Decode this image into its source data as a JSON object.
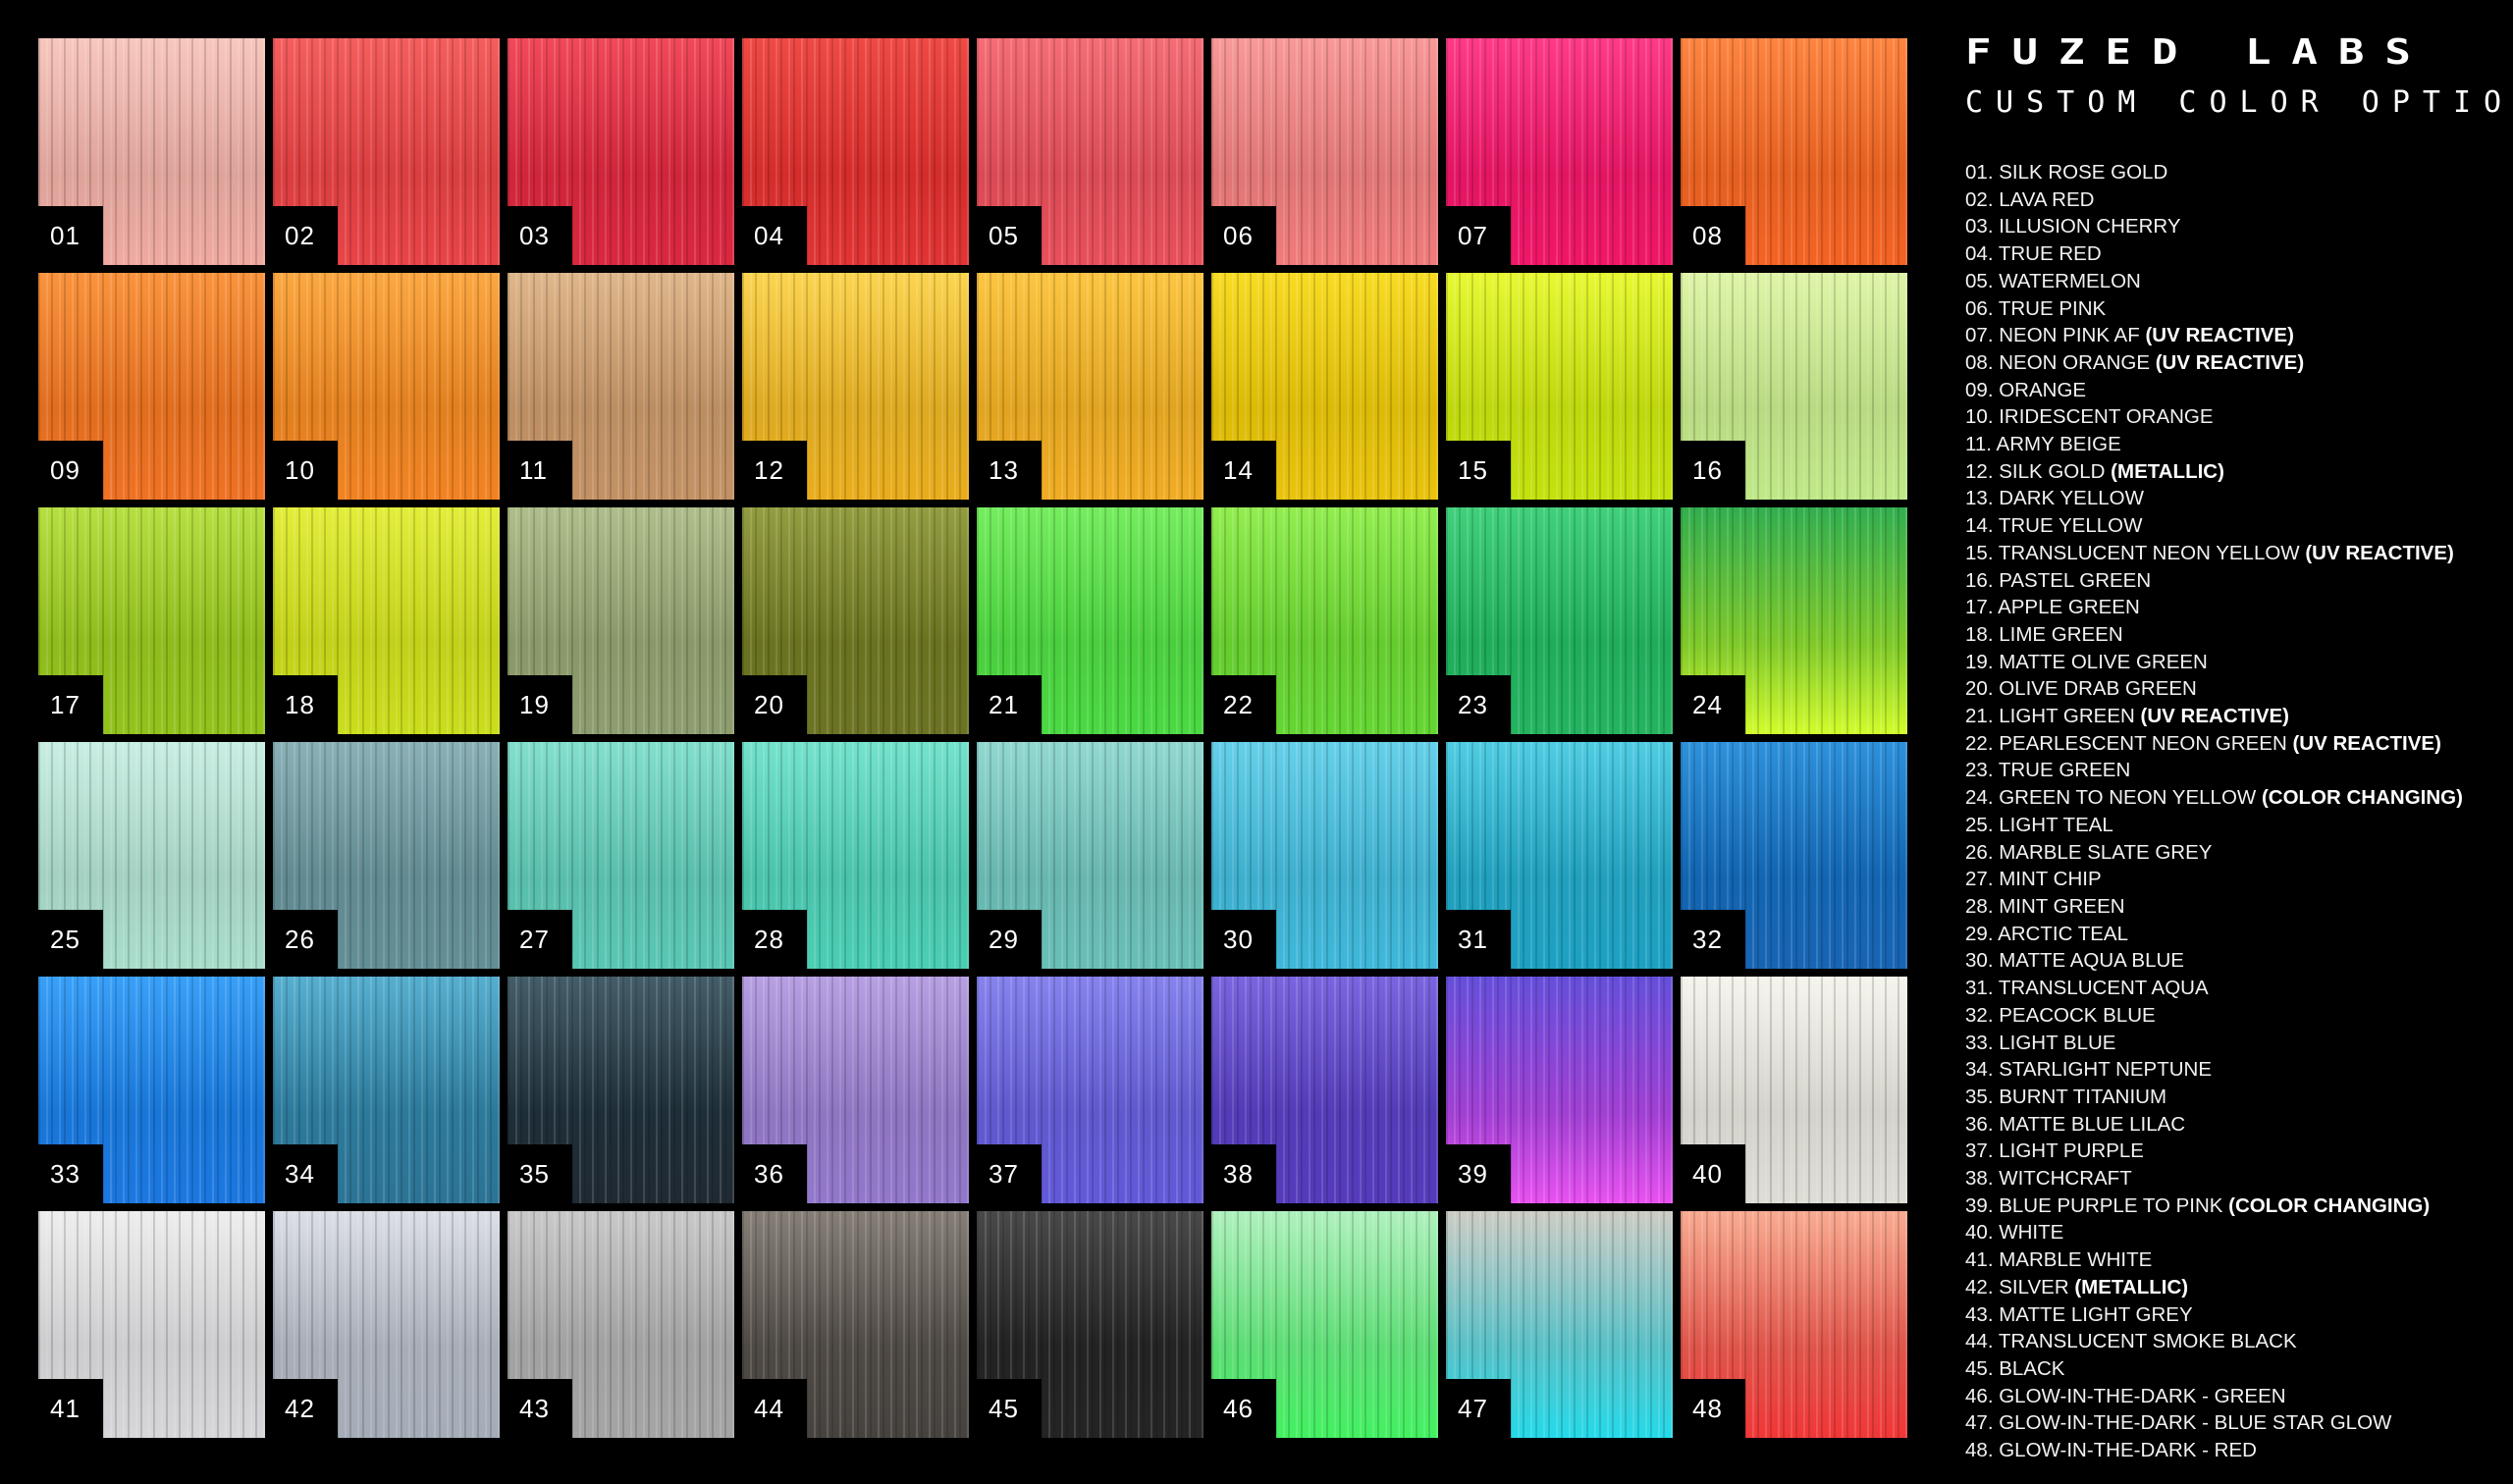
{
  "brand": {
    "logo_text": "FUZED LABS",
    "subtitle": "CUSTOM COLOR OPTIONS"
  },
  "swatches": [
    {
      "number": "01",
      "name": "SILK ROSE GOLD",
      "tag": "",
      "colors": [
        "#f6c2b8",
        "#eea59c"
      ]
    },
    {
      "number": "02",
      "name": "LAVA RED",
      "tag": "",
      "colors": [
        "#f45050",
        "#e83a3e"
      ]
    },
    {
      "number": "03",
      "name": "ILLUSION CHERRY",
      "tag": "",
      "colors": [
        "#f03a4c",
        "#d81c36"
      ]
    },
    {
      "number": "04",
      "name": "TRUE RED",
      "tag": "",
      "colors": [
        "#ee3a34",
        "#e02a2a"
      ]
    },
    {
      "number": "05",
      "name": "WATERMELON",
      "tag": "",
      "colors": [
        "#f4606a",
        "#e84652"
      ]
    },
    {
      "number": "06",
      "name": "TRUE PINK",
      "tag": "",
      "colors": [
        "#f89090",
        "#f07474"
      ]
    },
    {
      "number": "07",
      "name": "NEON PINK AF",
      "tag": "(UV REACTIVE)",
      "colors": [
        "#ff2a7c",
        "#f00a60"
      ]
    },
    {
      "number": "08",
      "name": "NEON ORANGE",
      "tag": "(UV REACTIVE)",
      "colors": [
        "#ff7a30",
        "#f45a18"
      ]
    },
    {
      "number": "09",
      "name": "ORANGE",
      "tag": "",
      "colors": [
        "#fa8a2c",
        "#f06a18"
      ]
    },
    {
      "number": "10",
      "name": "IRIDESCENT ORANGE",
      "tag": "",
      "colors": [
        "#fca030",
        "#f27c16"
      ]
    },
    {
      "number": "11",
      "name": "ARMY BEIGE",
      "tag": "",
      "colors": [
        "#dcb080",
        "#c08c5c"
      ]
    },
    {
      "number": "12",
      "name": "SILK GOLD",
      "tag": "(METALLIC)",
      "colors": [
        "#fcd040",
        "#e8a810"
      ]
    },
    {
      "number": "13",
      "name": "DARK YELLOW",
      "tag": "",
      "colors": [
        "#fcc030",
        "#f0a818"
      ]
    },
    {
      "number": "14",
      "name": "TRUE YELLOW",
      "tag": "",
      "colors": [
        "#f8d810",
        "#e8c000"
      ]
    },
    {
      "number": "15",
      "name": "TRANSLUCENT NEON YELLOW",
      "tag": "(UV REACTIVE)",
      "colors": [
        "#e4f820",
        "#c0e000"
      ]
    },
    {
      "number": "16",
      "name": "PASTEL GREEN",
      "tag": "",
      "colors": [
        "#dcf4a0",
        "#bce880"
      ]
    },
    {
      "number": "17",
      "name": "APPLE GREEN",
      "tag": "",
      "colors": [
        "#b0dc30",
        "#8cc010"
      ]
    },
    {
      "number": "18",
      "name": "LIME GREEN",
      "tag": "",
      "colors": [
        "#e0ec28",
        "#c8dc10"
      ]
    },
    {
      "number": "19",
      "name": "MATTE OLIVE GREEN",
      "tag": "",
      "colors": [
        "#a8b880",
        "#889868"
      ]
    },
    {
      "number": "20",
      "name": "OLIVE DRAB GREEN",
      "tag": "",
      "colors": [
        "#8a9430",
        "#646c18"
      ]
    },
    {
      "number": "21",
      "name": "LIGHT GREEN",
      "tag": "(UV REACTIVE)",
      "colors": [
        "#68ec50",
        "#40d838"
      ]
    },
    {
      "number": "22",
      "name": "PEARLESCENT NEON GREEN",
      "tag": "(UV REACTIVE)",
      "colors": [
        "#88ec40",
        "#5cd428"
      ]
    },
    {
      "number": "23",
      "name": "TRUE GREEN",
      "tag": "",
      "colors": [
        "#30cc70",
        "#18b058"
      ]
    },
    {
      "number": "24",
      "name": "GREEN TO NEON YELLOW",
      "tag": "(COLOR CHANGING)",
      "colors": [
        "#20a840",
        "#d0fc20"
      ]
    },
    {
      "number": "25",
      "name": "LIGHT TEAL",
      "tag": "",
      "colors": [
        "#c4ece0",
        "#a4dcc8"
      ]
    },
    {
      "number": "26",
      "name": "MARBLE SLATE GREY",
      "tag": "",
      "colors": [
        "#80aab0",
        "#5a8890"
      ]
    },
    {
      "number": "27",
      "name": "MINT CHIP",
      "tag": "",
      "colors": [
        "#78dcc8",
        "#50c4b0"
      ]
    },
    {
      "number": "28",
      "name": "MINT GREEN",
      "tag": "",
      "colors": [
        "#68e0c8",
        "#40ccb0"
      ]
    },
    {
      "number": "29",
      "name": "ARCTIC TEAL",
      "tag": "",
      "colors": [
        "#88d4cc",
        "#60bcb4"
      ]
    },
    {
      "number": "30",
      "name": "MATTE AQUA BLUE",
      "tag": "",
      "colors": [
        "#58cce8",
        "#34b4d8"
      ]
    },
    {
      "number": "31",
      "name": "TRANSLUCENT AQUA",
      "tag": "",
      "colors": [
        "#40c8e0",
        "#109cc0"
      ]
    },
    {
      "number": "32",
      "name": "PEACOCK BLUE",
      "tag": "",
      "colors": [
        "#1c88d8",
        "#0c5cb0"
      ]
    },
    {
      "number": "33",
      "name": "LIGHT BLUE",
      "tag": "",
      "colors": [
        "#2898f8",
        "#1070e0"
      ]
    },
    {
      "number": "34",
      "name": "STARLIGHT NEPTUNE",
      "tag": "",
      "colors": [
        "#48a8cc",
        "#206c90"
      ]
    },
    {
      "number": "35",
      "name": "BURNT TITANIUM",
      "tag": "",
      "colors": [
        "#34505c",
        "#141e28"
      ]
    },
    {
      "number": "36",
      "name": "MATTE BLUE LILAC",
      "tag": "",
      "colors": [
        "#b098e0",
        "#8c70c8"
      ]
    },
    {
      "number": "37",
      "name": "LIGHT PURPLE",
      "tag": "",
      "colors": [
        "#7c78ec",
        "#5a50d8"
      ]
    },
    {
      "number": "38",
      "name": "WITCHCRAFT",
      "tag": "",
      "colors": [
        "#7058dc",
        "#4c30b8"
      ]
    },
    {
      "number": "39",
      "name": "BLUE PURPLE TO PINK",
      "tag": "(COLOR CHANGING)",
      "colors": [
        "#5840d8",
        "#e848f0"
      ]
    },
    {
      "number": "40",
      "name": "WHITE",
      "tag": "",
      "colors": [
        "#f4f4ec",
        "#dcdcd4"
      ]
    },
    {
      "number": "41",
      "name": "MARBLE WHITE",
      "tag": "",
      "colors": [
        "#ececec",
        "#d4d4d8"
      ]
    },
    {
      "number": "42",
      "name": "SILVER",
      "tag": "(METALLIC)",
      "colors": [
        "#d8dce4",
        "#a0a8b4"
      ]
    },
    {
      "number": "43",
      "name": "MATTE LIGHT GREY",
      "tag": "",
      "colors": [
        "#c4c4c4",
        "#a0a0a0"
      ]
    },
    {
      "number": "44",
      "name": "TRANSLUCENT SMOKE BLACK",
      "tag": "",
      "colors": [
        "#7c746c",
        "#3c3834"
      ]
    },
    {
      "number": "45",
      "name": "BLACK",
      "tag": "",
      "colors": [
        "#3a3a3a",
        "#181818"
      ]
    },
    {
      "number": "46",
      "name": "GLOW-IN-THE-DARK - GREEN",
      "tag": "",
      "colors": [
        "#a8f0b8",
        "#38f058"
      ]
    },
    {
      "number": "47",
      "name": "GLOW-IN-THE-DARK - BLUE STAR GLOW",
      "tag": "",
      "colors": [
        "#c8c8c0",
        "#18d8e8"
      ]
    },
    {
      "number": "48",
      "name": "GLOW-IN-THE-DARK - RED",
      "tag": "",
      "colors": [
        "#f8a488",
        "#f02c2c"
      ]
    }
  ]
}
